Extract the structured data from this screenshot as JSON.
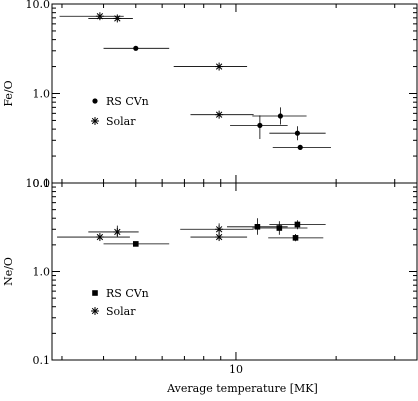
{
  "chart_data": [
    {
      "type": "scatter",
      "panel": "top",
      "ylabel": "Fe/O",
      "yscale": "log",
      "ylim": [
        0.1,
        10.0
      ],
      "xscale": "log",
      "xlim": [
        2.8,
        35
      ],
      "ytick_labels": [
        {
          "value": 10.0,
          "label": "10.0"
        },
        {
          "value": 1.0,
          "label": "1.0"
        },
        {
          "value": 0.1,
          "label": "0.1"
        }
      ],
      "legend": {
        "placement": "left-middle",
        "entries": [
          "RS CVn",
          "Solar"
        ]
      },
      "series": [
        {
          "name": "RS CVn",
          "marker": "circle",
          "points": [
            {
              "x": 5.0,
              "y": 3.2,
              "xerr": [
                4.0,
                6.3
              ]
            },
            {
              "x": 13.6,
              "y": 0.56,
              "xerr": [
                11.2,
                16.3
              ],
              "yerr": [
                0.45,
                0.7
              ]
            },
            {
              "x": 11.8,
              "y": 0.44,
              "xerr": [
                9.6,
                14.3
              ],
              "yerr": [
                0.31,
                0.57
              ]
            },
            {
              "x": 15.3,
              "y": 0.36,
              "xerr": [
                12.6,
                18.6
              ],
              "yerr": [
                0.3,
                0.43
              ]
            },
            {
              "x": 15.6,
              "y": 0.25,
              "xerr": [
                12.9,
                19.3
              ]
            }
          ]
        },
        {
          "name": "Solar",
          "marker": "asterisk",
          "points": [
            {
              "x": 3.9,
              "y": 7.3,
              "xerr": [
                2.95,
                4.6
              ]
            },
            {
              "x": 4.4,
              "y": 6.9,
              "xerr": [
                3.6,
                4.9
              ]
            },
            {
              "x": 8.9,
              "y": 2.0,
              "xerr": [
                6.5,
                10.8
              ]
            },
            {
              "x": 8.9,
              "y": 0.58,
              "xerr": [
                7.3,
                11.3
              ]
            }
          ]
        }
      ]
    },
    {
      "type": "scatter",
      "panel": "bottom",
      "ylabel": "Ne/O",
      "yscale": "log",
      "ylim": [
        0.1,
        10.0
      ],
      "xscale": "log",
      "xlim": [
        2.8,
        35
      ],
      "xlabel": "Average temperature [MK]",
      "xtick_labels": [
        {
          "value": 10,
          "label": "10"
        }
      ],
      "ytick_labels": [
        {
          "value": 10.0,
          "label": "10.0"
        },
        {
          "value": 1.0,
          "label": "1.0"
        },
        {
          "value": 0.1,
          "label": "0.1"
        }
      ],
      "legend": {
        "placement": "bottom-left",
        "entries": [
          "RS CVn",
          "Solar"
        ]
      },
      "series": [
        {
          "name": "RS CVn",
          "marker": "square",
          "points": [
            {
              "x": 5.0,
              "y": 2.05,
              "xerr": [
                4.0,
                6.3
              ]
            },
            {
              "x": 11.6,
              "y": 3.2,
              "xerr": [
                9.4,
                14.3
              ],
              "yerr": [
                2.6,
                4.0
              ]
            },
            {
              "x": 13.5,
              "y": 3.1,
              "xerr": [
                11.2,
                16.4
              ],
              "yerr": [
                2.6,
                3.7
              ]
            },
            {
              "x": 15.3,
              "y": 3.4,
              "xerr": [
                12.6,
                18.6
              ],
              "yerr": [
                3.0,
                3.8
              ]
            },
            {
              "x": 15.1,
              "y": 2.4,
              "xerr": [
                12.5,
                18.3
              ],
              "yerr": [
                2.2,
                2.65
              ]
            }
          ]
        },
        {
          "name": "Solar",
          "marker": "asterisk",
          "points": [
            {
              "x": 3.9,
              "y": 2.45,
              "xerr": [
                2.9,
                4.8
              ]
            },
            {
              "x": 4.4,
              "y": 2.8,
              "xerr": [
                3.6,
                5.1
              ],
              "yerr": [
                2.45,
                3.3
              ]
            },
            {
              "x": 8.9,
              "y": 3.0,
              "xerr": [
                6.8,
                11.3
              ],
              "yerr": [
                2.6,
                3.5
              ]
            },
            {
              "x": 8.9,
              "y": 2.45,
              "xerr": [
                7.3,
                10.8
              ]
            }
          ]
        }
      ]
    }
  ]
}
